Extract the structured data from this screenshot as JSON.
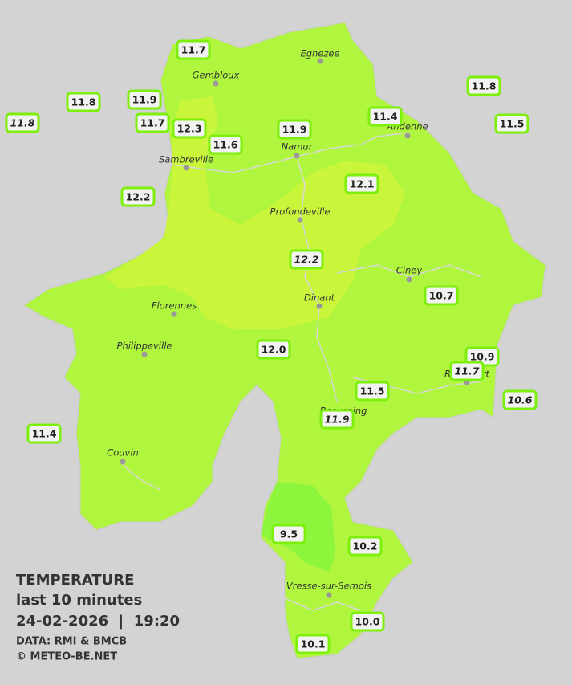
{
  "title": "TEMPERATURE",
  "subtitle": "last 10 minutes",
  "datetime": "24-02-2026  |  19:20",
  "source": "DATA: RMI & BMCB",
  "copyright": "© METEO-BE.NET",
  "cities": [
    "Eghezee",
    "Gembloux",
    "Andenne",
    "Namur",
    "Sambreville",
    "Profondeville",
    "Ciney",
    "Dinant",
    "Florennes",
    "Philippeville",
    "Rochefort",
    "Beauraing",
    "Couvin",
    "Vresse-sur-Semois"
  ],
  "stations": [
    {
      "value": 11.7
    },
    {
      "value": 11.8
    },
    {
      "value": 11.9
    },
    {
      "value": 11.7
    },
    {
      "value": 12.3
    },
    {
      "value": 11.8,
      "italic": true
    },
    {
      "value": 11.6
    },
    {
      "value": 11.9
    },
    {
      "value": 11.4
    },
    {
      "value": 11.8
    },
    {
      "value": 11.5
    },
    {
      "value": 12.2
    },
    {
      "value": 12.1
    },
    {
      "value": 12.2,
      "italic": true
    },
    {
      "value": 10.7
    },
    {
      "value": 12.0,
      "label": "12.0"
    },
    {
      "value": 10.9
    },
    {
      "value": 11.5
    },
    {
      "value": 11.7,
      "italic": true
    },
    {
      "value": 11.9,
      "italic": true
    },
    {
      "value": 10.6,
      "italic": true
    },
    {
      "value": 11.4
    },
    {
      "value": 9.5
    },
    {
      "value": 10.2
    },
    {
      "value": 10.0,
      "label": "10.0"
    },
    {
      "value": 10.1
    }
  ]
}
